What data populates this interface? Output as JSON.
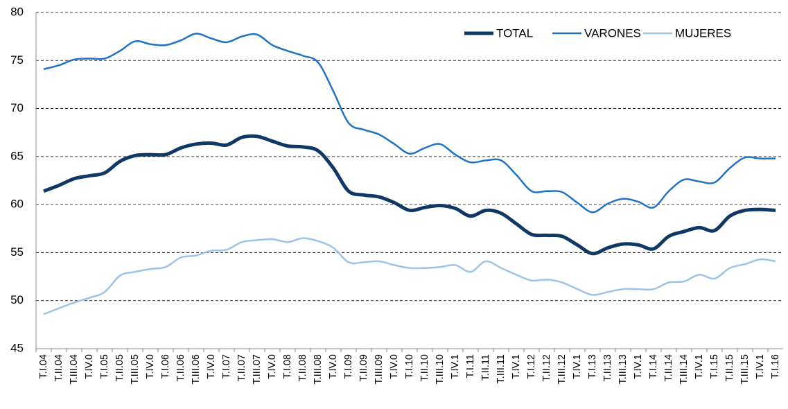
{
  "chart_data": {
    "type": "line",
    "categories": [
      "T.I.04",
      "T.II.04",
      "T.III.04",
      "T.IV.0",
      "T.I.05",
      "T.II.05",
      "T.III.05",
      "T.IV.0",
      "T.I.06",
      "T.II.06",
      "T.III.06",
      "T.IV.0",
      "T.I.07",
      "T.II.07",
      "T.III.07",
      "T.IV.0",
      "T.I.08",
      "T.II.08",
      "T.III.08",
      "T.IV.0",
      "T.I.09",
      "T.II.09",
      "T.III.09",
      "T.IV.0",
      "T.I.10",
      "T.II.10",
      "T.III.10",
      "T.IV.1",
      "T.I.11",
      "T.II.11",
      "T.III.11",
      "T.IV.1",
      "T.I.12",
      "T.II.12",
      "T.III.12",
      "T.IV.1",
      "T.I.13",
      "T.II.13",
      "T.III.13",
      "T.IV.1",
      "T.I.14",
      "T.II.14",
      "T.III.14",
      "T.IV.1",
      "T.I.15",
      "T.II.15",
      "T.III.15",
      "T.IV.1",
      "T.I.16"
    ],
    "series": [
      {
        "name": "TOTAL",
        "color": "#0f3864",
        "width": 5,
        "values": [
          61.4,
          62.0,
          62.7,
          63.0,
          63.3,
          64.5,
          65.1,
          65.2,
          65.2,
          65.9,
          66.3,
          66.4,
          66.2,
          67.0,
          67.1,
          66.6,
          66.1,
          66.0,
          65.6,
          63.8,
          61.4,
          61.0,
          60.8,
          60.2,
          59.4,
          59.7,
          59.9,
          59.6,
          58.8,
          59.4,
          59.1,
          58.0,
          56.9,
          56.8,
          56.7,
          55.8,
          54.9,
          55.5,
          55.9,
          55.8,
          55.4,
          56.7,
          57.2,
          57.6,
          57.3,
          58.8,
          59.4,
          59.5,
          59.4
        ]
      },
      {
        "name": "VARONES",
        "color": "#1f72c4",
        "width": 2.5,
        "values": [
          74.1,
          74.5,
          75.1,
          75.2,
          75.2,
          76.0,
          77.0,
          76.7,
          76.6,
          77.1,
          77.8,
          77.3,
          76.9,
          77.5,
          77.7,
          76.6,
          76.0,
          75.5,
          74.8,
          71.8,
          68.5,
          67.8,
          67.3,
          66.3,
          65.3,
          65.9,
          66.3,
          65.2,
          64.4,
          64.6,
          64.6,
          63.1,
          61.4,
          61.4,
          61.3,
          60.2,
          59.2,
          60.1,
          60.6,
          60.3,
          59.7,
          61.4,
          62.6,
          62.4,
          62.3,
          63.8,
          64.9,
          64.8,
          64.8
        ]
      },
      {
        "name": "MUJERES",
        "color": "#9dc3e6",
        "width": 2.5,
        "values": [
          48.6,
          49.2,
          49.8,
          50.3,
          50.9,
          52.6,
          53.0,
          53.3,
          53.5,
          54.5,
          54.7,
          55.2,
          55.3,
          56.1,
          56.3,
          56.4,
          56.1,
          56.5,
          56.2,
          55.5,
          54.0,
          54.0,
          54.1,
          53.7,
          53.4,
          53.4,
          53.5,
          53.7,
          53.0,
          54.1,
          53.4,
          52.7,
          52.1,
          52.2,
          51.9,
          51.2,
          50.6,
          50.9,
          51.2,
          51.2,
          51.2,
          51.9,
          52.0,
          52.7,
          52.3,
          53.4,
          53.8,
          54.3,
          54.1
        ]
      }
    ],
    "ylim": [
      45,
      80
    ],
    "yticks": [
      45,
      50,
      55,
      60,
      65,
      70,
      75,
      80
    ],
    "grid": true,
    "legend": "upper right"
  }
}
